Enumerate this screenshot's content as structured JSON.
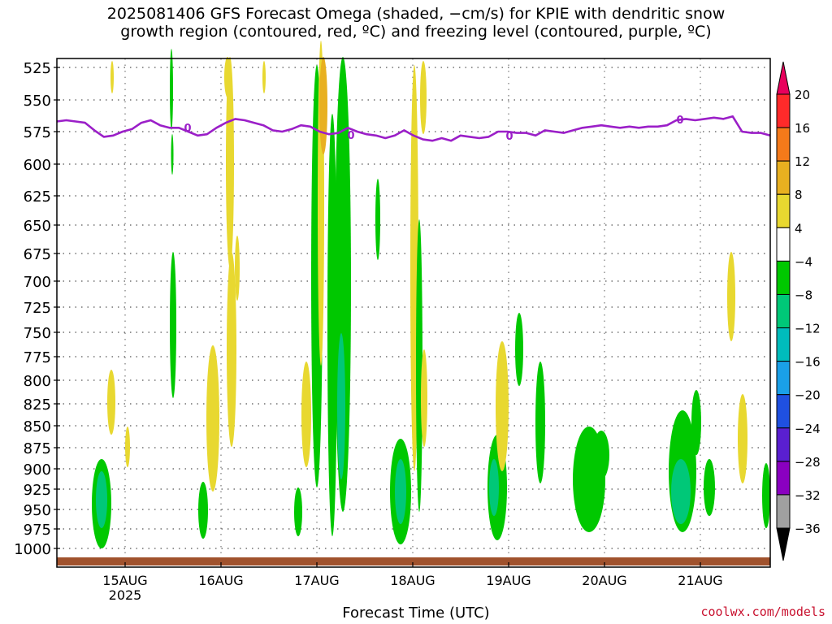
{
  "chart_data": {
    "type": "heatmap",
    "title_lines": [
      "2025081406 GFS Forecast Omega (shaded, −cm/s) for KPIE with dendritic snow",
      "growth region (contoured, red, ºC) and freezing level (contoured, purple, ºC)"
    ],
    "xlabel": "Forecast Time (UTC)",
    "x_ticks": [
      "15AUG",
      "16AUG",
      "17AUG",
      "18AUG",
      "19AUG",
      "20AUG",
      "21AUG"
    ],
    "x_year_label": "2025",
    "y_ticks": [
      525,
      550,
      575,
      600,
      625,
      650,
      675,
      700,
      725,
      750,
      775,
      800,
      825,
      850,
      875,
      900,
      925,
      950,
      975,
      1000
    ],
    "y_axis_inverted": true,
    "grid": true,
    "colorbar": {
      "ticks": [
        "20",
        "16",
        "12",
        "8",
        "4",
        "−4",
        "−8",
        "−12",
        "−16",
        "−20",
        "−24",
        "−28",
        "−32",
        "−36"
      ],
      "colors": [
        "#e8005c",
        "#ff2a2a",
        "#f57a1a",
        "#e8b020",
        "#e8d830",
        "#ffffff",
        "#00c800",
        "#00c878",
        "#00bcbc",
        "#1aa0e8",
        "#1f50e0",
        "#5a1fd0",
        "#8a00c0",
        "#a0a0a0",
        "#000000"
      ]
    },
    "freezing_level_label": "0",
    "freezing_level_hpa": [
      567,
      566,
      567,
      568,
      574,
      579,
      578,
      575,
      573,
      568,
      566,
      570,
      572,
      572,
      575,
      578,
      577,
      572,
      568,
      565,
      566,
      568,
      570,
      574,
      575,
      573,
      570,
      571,
      575,
      577,
      576,
      572,
      575,
      577,
      578,
      580,
      578,
      574,
      578,
      581,
      582,
      580,
      582,
      578,
      579,
      580,
      579,
      575,
      575,
      576,
      576,
      578,
      574,
      575,
      576,
      574,
      572,
      571,
      570,
      571,
      572,
      571,
      572,
      571,
      571,
      570,
      566,
      565,
      566,
      565,
      564,
      565,
      563,
      575,
      576,
      576,
      578
    ],
    "credit": "coolwx.com/models"
  }
}
